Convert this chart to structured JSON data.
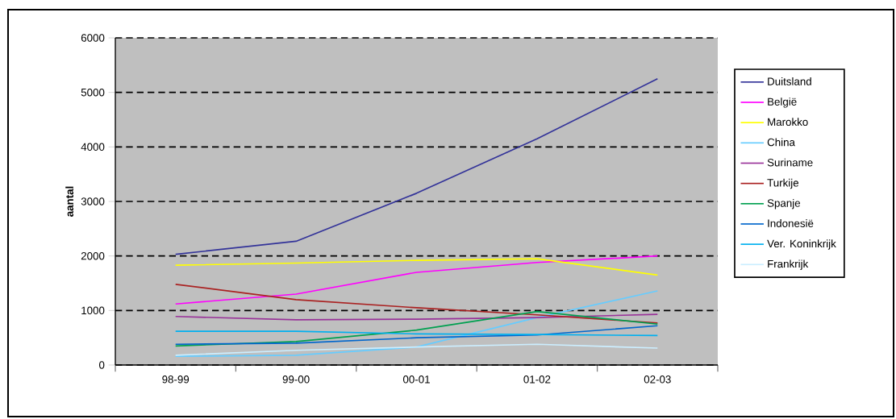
{
  "chart_data": {
    "type": "line",
    "ylabel": "aantal",
    "categories": [
      "98-99",
      "99-00",
      "00-01",
      "01-02",
      "02-03"
    ],
    "series": [
      {
        "name": "Duitsland",
        "color": "#333399",
        "values": [
          2030,
          2270,
          3150,
          4150,
          5250
        ]
      },
      {
        "name": "België",
        "color": "#ff00ff",
        "values": [
          1120,
          1300,
          1700,
          1880,
          2000
        ]
      },
      {
        "name": "Marokko",
        "color": "#ffff00",
        "values": [
          1830,
          1870,
          1920,
          1950,
          1650
        ]
      },
      {
        "name": "China",
        "color": "#66ccff",
        "values": [
          160,
          180,
          330,
          870,
          1360
        ]
      },
      {
        "name": "Suriname",
        "color": "#993399",
        "values": [
          890,
          830,
          840,
          870,
          930
        ]
      },
      {
        "name": "Turkije",
        "color": "#aa2222",
        "values": [
          1480,
          1200,
          1050,
          920,
          770
        ]
      },
      {
        "name": "Spanje",
        "color": "#00a050",
        "values": [
          350,
          430,
          640,
          980,
          750
        ]
      },
      {
        "name": "Indonesië",
        "color": "#0066cc",
        "values": [
          380,
          400,
          500,
          550,
          720
        ]
      },
      {
        "name": "Ver. Koninkrijk",
        "color": "#00b0f0",
        "values": [
          620,
          620,
          570,
          560,
          540
        ]
      },
      {
        "name": "Frankrijk",
        "color": "#cceeff",
        "values": [
          180,
          270,
          330,
          380,
          310
        ]
      }
    ],
    "ylim": [
      0,
      6000
    ],
    "yticks": [
      0,
      1000,
      2000,
      3000,
      4000,
      5000,
      6000
    ],
    "grid": "y",
    "legend": "right",
    "marker": "none",
    "line_style": "solid"
  }
}
